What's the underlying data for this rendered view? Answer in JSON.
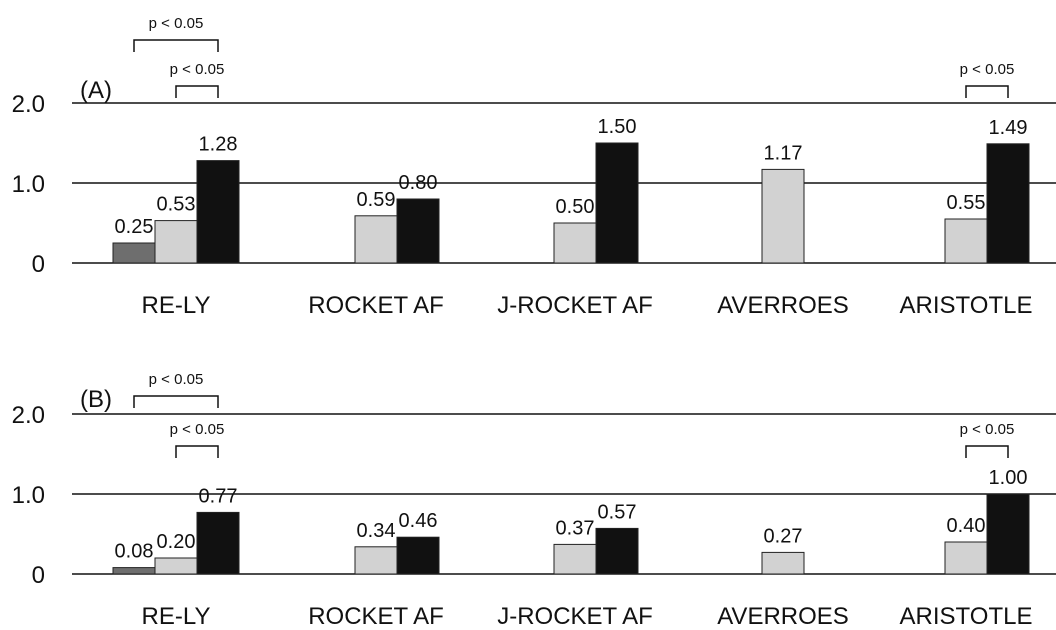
{
  "colors": {
    "bar_dark_gray": "#6e6e6e",
    "bar_light_gray": "#d2d2d2",
    "bar_black": "#111111",
    "axis": "#111111",
    "background": "#ffffff"
  },
  "chart_data": [
    {
      "type": "bar",
      "panel_label": "(A)",
      "title": "",
      "xlabel": "",
      "ylabel": "",
      "ylim": [
        0,
        2.0
      ],
      "yticks": [
        "0",
        "1.0",
        "2.0"
      ],
      "ytick_values": [
        0,
        1.0,
        2.0
      ],
      "gridlines": [
        1.0,
        2.0
      ],
      "legend": "none",
      "categories": [
        "RE-LY",
        "ROCKET AF",
        "J-ROCKET AF",
        "AVERROES",
        "ARISTOTLE"
      ],
      "series": [
        {
          "values": [
            0.25,
            null,
            null,
            null,
            null
          ],
          "color": "#6e6e6e"
        },
        {
          "values": [
            0.53,
            0.59,
            0.5,
            1.17,
            0.55
          ],
          "color": "#d2d2d2"
        },
        {
          "values": [
            1.28,
            0.8,
            1.5,
            null,
            1.49
          ],
          "color": "#111111"
        }
      ],
      "value_labels": [
        [
          "0.25",
          null,
          null,
          null,
          null
        ],
        [
          "0.53",
          "0.59",
          "0.50",
          "1.17",
          "0.55"
        ],
        [
          "1.28",
          "0.80",
          "1.50",
          null,
          "1.49"
        ]
      ],
      "annotations": [
        {
          "text": "p < 0.05",
          "category": 0,
          "from_series": 0,
          "to_series": 2,
          "level": 2
        },
        {
          "text": "p < 0.05",
          "category": 0,
          "from_series": 1,
          "to_series": 2,
          "level": 1
        },
        {
          "text": "p < 0.05",
          "category": 4,
          "from_series": 1,
          "to_series": 2,
          "level": 1
        }
      ]
    },
    {
      "type": "bar",
      "panel_label": "(B)",
      "title": "",
      "xlabel": "",
      "ylabel": "",
      "ylim": [
        0,
        2.0
      ],
      "yticks": [
        "0",
        "1.0",
        "2.0"
      ],
      "ytick_values": [
        0,
        1.0,
        2.0
      ],
      "gridlines": [
        1.0,
        2.0
      ],
      "legend": "none",
      "categories": [
        "RE-LY",
        "ROCKET AF",
        "J-ROCKET AF",
        "AVERROES",
        "ARISTOTLE"
      ],
      "series": [
        {
          "values": [
            0.08,
            null,
            null,
            null,
            null
          ],
          "color": "#6e6e6e"
        },
        {
          "values": [
            0.2,
            0.34,
            0.37,
            0.27,
            0.4
          ],
          "color": "#d2d2d2"
        },
        {
          "values": [
            0.77,
            0.46,
            0.57,
            null,
            1.0
          ],
          "color": "#111111"
        }
      ],
      "value_labels": [
        [
          "0.08",
          null,
          null,
          null,
          null
        ],
        [
          "0.20",
          "0.34",
          "0.37",
          "0.27",
          "0.40"
        ],
        [
          "0.77",
          "0.46",
          "0.57",
          null,
          "1.00"
        ]
      ],
      "annotations": [
        {
          "text": "p < 0.05",
          "category": 0,
          "from_series": 0,
          "to_series": 2,
          "level": 2
        },
        {
          "text": "p < 0.05",
          "category": 0,
          "from_series": 1,
          "to_series": 2,
          "level": 1
        },
        {
          "text": "p < 0.05",
          "category": 4,
          "from_series": 1,
          "to_series": 2,
          "level": 1
        }
      ]
    }
  ]
}
